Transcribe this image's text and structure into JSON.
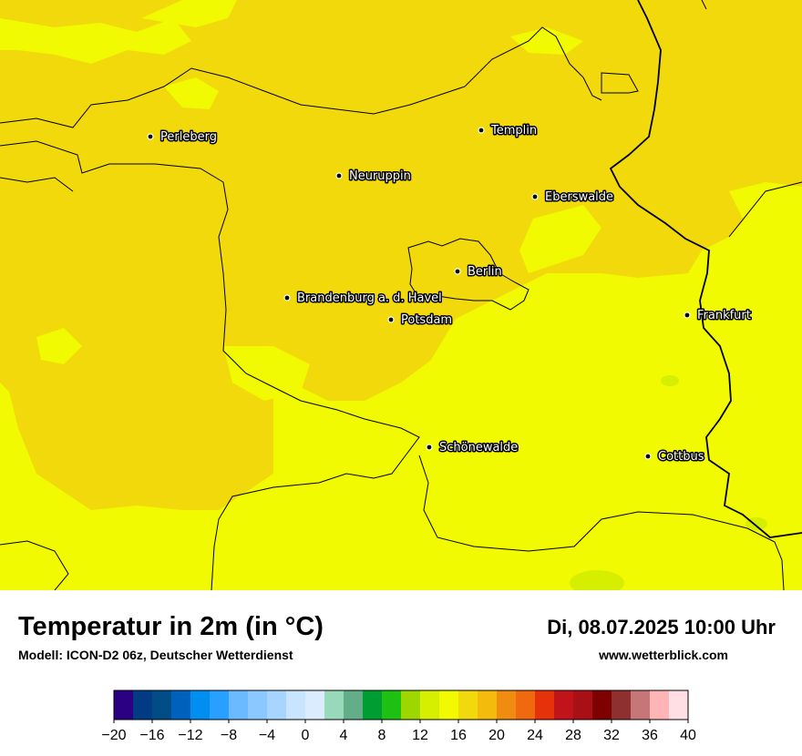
{
  "header": {
    "title": "Temperatur in 2m (in °C)",
    "model": "Modell: ICON-D2 06z, Deutscher Wetterdienst",
    "datetime": "Di, 08.07.2025 10:00 Uhr",
    "website": "www.wetterblick.com"
  },
  "map": {
    "field_colors": {
      "t16_18": "#f1fa00",
      "t18_20": "#f1d90c",
      "t14_16": "#d6ee00",
      "t12_14": "#9ed600"
    },
    "border_color": "#000000",
    "cities": [
      {
        "name": "Perleberg"
      },
      {
        "name": "Templin"
      },
      {
        "name": "Neuruppin"
      },
      {
        "name": "Eberswalde"
      },
      {
        "name": "Berlin"
      },
      {
        "name": "Brandenburg a. d. Havel"
      },
      {
        "name": "Potsdam"
      },
      {
        "name": "Frankfurt"
      },
      {
        "name": "Schönewalde"
      },
      {
        "name": "Cottbus"
      }
    ]
  },
  "legend": {
    "unit": "°C",
    "ticks": [
      "−20",
      "−16",
      "−12",
      "−8",
      "−4",
      "0",
      "4",
      "8",
      "12",
      "16",
      "20",
      "24",
      "28",
      "32",
      "36",
      "40"
    ],
    "colors": [
      "#2c0083",
      "#003b84",
      "#004c87",
      "#0061bc",
      "#008ef0",
      "#28a0ff",
      "#6bbaff",
      "#8ac8ff",
      "#a8d5ff",
      "#c8e4ff",
      "#dcecff",
      "#98d9b9",
      "#63ad88",
      "#009e32",
      "#1ec012",
      "#9ed600",
      "#d6ee00",
      "#f1fa00",
      "#f1d90c",
      "#f3bb0c",
      "#f08c0f",
      "#f0690f",
      "#e6320a",
      "#c0141a",
      "#a81016",
      "#7e0000",
      "#8e3030",
      "#c67676",
      "#ffb5b5",
      "#ffdfe3"
    ]
  }
}
